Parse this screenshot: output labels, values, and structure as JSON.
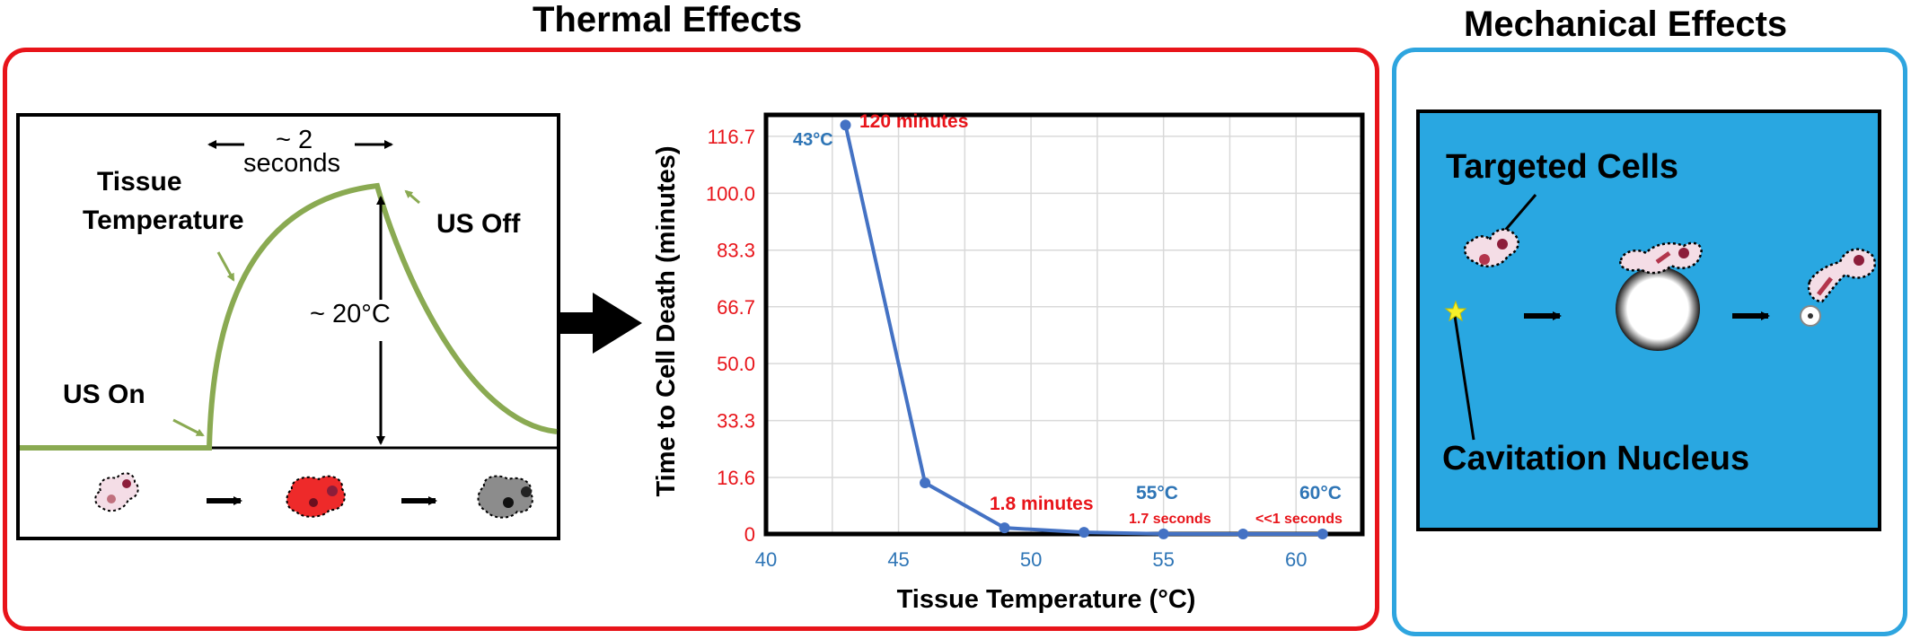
{
  "thermal": {
    "title": "Thermal Effects",
    "width_label_1": "~ 2",
    "width_label_2": "seconds",
    "tissue_label_1": "Tissue",
    "tissue_label_2": "Temperature",
    "us_off": "US Off",
    "delta": "~ 20°C",
    "us_on": "US On"
  },
  "chart_data": {
    "type": "line",
    "xlabel": "Tissue Temperature (°C)",
    "ylabel": "Time to Cell Death (minutes)",
    "xlim": [
      40,
      62.5
    ],
    "ylim": [
      0,
      123
    ],
    "x_ticks": [
      "40",
      "45",
      "50",
      "55",
      "60"
    ],
    "y_ticks": [
      "0",
      "16.6",
      "33.3",
      "50.0",
      "66.7",
      "83.3",
      "100.0",
      "116.7"
    ],
    "y_tick_values": [
      0,
      16.6,
      33.3,
      50.0,
      66.7,
      83.3,
      100.0,
      116.7
    ],
    "x_tick_values": [
      40,
      45,
      50,
      55,
      60
    ],
    "grid": true,
    "series": [
      {
        "x": [
          43,
          46,
          49,
          52,
          55,
          58,
          61
        ],
        "y": [
          120,
          15,
          1.8,
          0.5,
          0.03,
          0.0,
          0.0
        ]
      }
    ],
    "colors": {
      "line": "#4472c4",
      "tick_x": "#2e75b6",
      "tick_y": "#e8141a"
    },
    "annotations": {
      "t43": "43°C",
      "m120": "120 minutes",
      "m18": "1.8 minutes",
      "t55": "55°C",
      "s17": "1.7 seconds",
      "t60": "60°C",
      "s1": "<<1 seconds"
    }
  },
  "mechanical": {
    "title": "Mechanical Effects",
    "targeted": "Targeted Cells",
    "nucleus": "Cavitation Nucleus"
  },
  "colors": {
    "thermal_frame": "#e8141a",
    "mechanical_frame": "#2ea5df",
    "panel_blue": "#29a7e1",
    "curve_green": "#8aaa52"
  }
}
